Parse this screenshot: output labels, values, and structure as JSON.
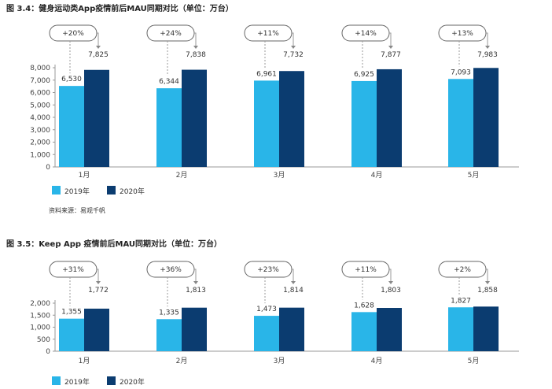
{
  "colors": {
    "s2019": "#29b5e8",
    "s2020": "#0b3c70",
    "axis": "#999999",
    "dash": "#999999"
  },
  "chart_data": [
    {
      "type": "bar",
      "title": "图 3.4：健身运动类App疫情前后MAU同期对比（单位：万台）",
      "categories": [
        "1月",
        "2月",
        "3月",
        "4月",
        "5月"
      ],
      "series": [
        {
          "name": "2019年",
          "values": [
            6530,
            6344,
            6961,
            6925,
            7093
          ],
          "labels": [
            "6,530",
            "6,344",
            "6,961",
            "6,925",
            "7,093"
          ]
        },
        {
          "name": "2020年",
          "values": [
            7825,
            7838,
            7732,
            7877,
            7983
          ],
          "labels": [
            "7,825",
            "7,838",
            "7,732",
            "7,877",
            "7,983"
          ]
        }
      ],
      "growth": [
        "+20%",
        "+24%",
        "+11%",
        "+14%",
        "+13%"
      ],
      "yticks": [
        "0",
        "1,000",
        "2,000",
        "3,000",
        "4,000",
        "5,000",
        "6,000",
        "7,000",
        "8,000"
      ],
      "ylim": [
        0,
        8000
      ],
      "legend": "bottom-left",
      "source": "资料来源：易观千帆"
    },
    {
      "type": "bar",
      "title": "图 3.5：Keep App 疫情前后MAU同期对比（单位：万台）",
      "categories": [
        "1月",
        "2月",
        "3月",
        "4月",
        "5月"
      ],
      "series": [
        {
          "name": "2019年",
          "values": [
            1355,
            1335,
            1473,
            1628,
            1827
          ],
          "labels": [
            "1,355",
            "1,335",
            "1,473",
            "1,628",
            "1,827"
          ]
        },
        {
          "name": "2020年",
          "values": [
            1772,
            1813,
            1814,
            1803,
            1858
          ],
          "labels": [
            "1,772",
            "1,813",
            "1,814",
            "1,803",
            "1,858"
          ]
        }
      ],
      "growth": [
        "+31%",
        "+36%",
        "+23%",
        "+11%",
        "+2%"
      ],
      "yticks": [
        "0",
        "500",
        "1,000",
        "1,500",
        "2,000"
      ],
      "ylim": [
        0,
        2000
      ],
      "legend": "bottom-left"
    }
  ]
}
